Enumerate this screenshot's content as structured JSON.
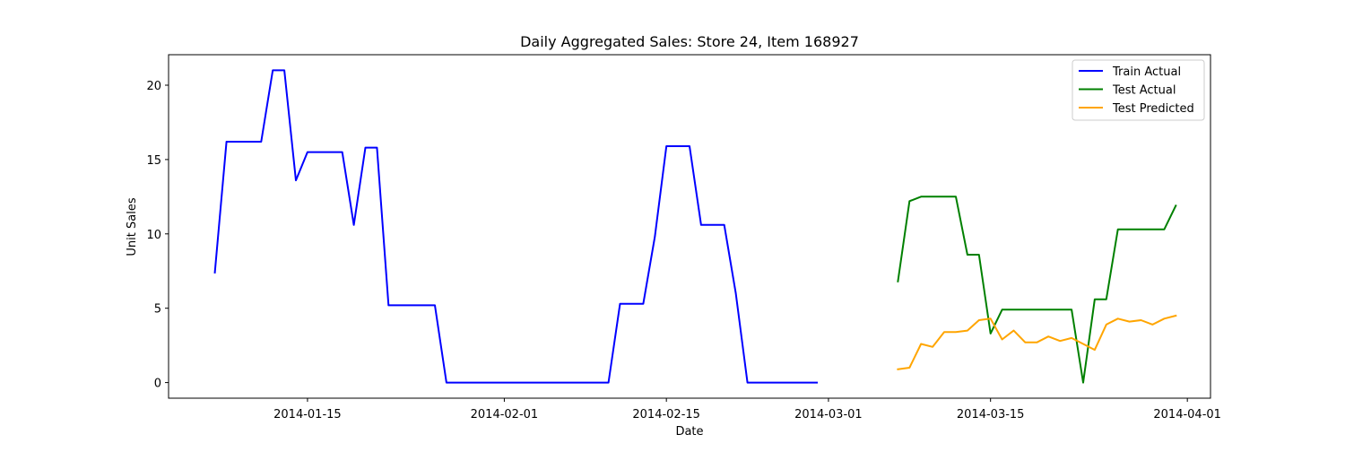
{
  "chart_data": {
    "type": "line",
    "title": "Daily Aggregated Sales: Store 24, Item 168927",
    "xlabel": "Date",
    "ylabel": "Unit Sales",
    "xlim": [
      "2014-01-03",
      "2014-04-03"
    ],
    "ylim": [
      -1.05,
      22.05
    ],
    "x_ticks": [
      "2014-01-15",
      "2014-02-01",
      "2014-02-15",
      "2014-03-01",
      "2014-03-15",
      "2014-04-01"
    ],
    "y_ticks": [
      0,
      5,
      10,
      15,
      20
    ],
    "grid": false,
    "legend_position": "top-right",
    "series": [
      {
        "name": "Train Actual",
        "color": "#0000ff",
        "x": [
          "2014-01-07",
          "2014-01-08",
          "2014-01-09",
          "2014-01-10",
          "2014-01-11",
          "2014-01-12",
          "2014-01-13",
          "2014-01-14",
          "2014-01-15",
          "2014-01-16",
          "2014-01-17",
          "2014-01-18",
          "2014-01-19",
          "2014-01-20",
          "2014-01-21",
          "2014-01-22",
          "2014-01-23",
          "2014-01-24",
          "2014-01-25",
          "2014-01-26",
          "2014-01-27",
          "2014-01-28",
          "2014-01-29",
          "2014-01-30",
          "2014-01-31",
          "2014-02-01",
          "2014-02-02",
          "2014-02-03",
          "2014-02-04",
          "2014-02-05",
          "2014-02-06",
          "2014-02-07",
          "2014-02-08",
          "2014-02-09",
          "2014-02-10",
          "2014-02-11",
          "2014-02-12",
          "2014-02-13",
          "2014-02-14",
          "2014-02-15",
          "2014-02-16",
          "2014-02-17",
          "2014-02-18",
          "2014-02-19",
          "2014-02-20",
          "2014-02-21",
          "2014-02-22",
          "2014-02-23",
          "2014-02-24",
          "2014-02-25",
          "2014-02-26",
          "2014-02-27",
          "2014-02-28"
        ],
        "values": [
          7.4,
          16.2,
          16.2,
          16.2,
          16.2,
          21.0,
          21.0,
          13.6,
          15.5,
          15.5,
          15.5,
          15.5,
          10.6,
          15.8,
          15.8,
          5.2,
          5.2,
          5.2,
          5.2,
          5.2,
          0,
          0,
          0,
          0,
          0,
          0,
          0,
          0,
          0,
          0,
          0,
          0,
          0,
          0,
          0,
          5.3,
          5.3,
          5.3,
          9.8,
          15.9,
          15.9,
          15.9,
          10.6,
          10.6,
          10.6,
          6.0,
          0,
          0,
          0,
          0,
          0,
          0,
          0
        ]
      },
      {
        "name": "Test Actual",
        "color": "#008000",
        "x": [
          "2014-03-07",
          "2014-03-08",
          "2014-03-09",
          "2014-03-10",
          "2014-03-11",
          "2014-03-12",
          "2014-03-13",
          "2014-03-14",
          "2014-03-15",
          "2014-03-16",
          "2014-03-17",
          "2014-03-18",
          "2014-03-19",
          "2014-03-20",
          "2014-03-21",
          "2014-03-22",
          "2014-03-23",
          "2014-03-24",
          "2014-03-25",
          "2014-03-26",
          "2014-03-27",
          "2014-03-28",
          "2014-03-29",
          "2014-03-30",
          "2014-03-31"
        ],
        "values": [
          6.8,
          12.2,
          12.5,
          12.5,
          12.5,
          12.5,
          8.6,
          8.6,
          3.3,
          4.9,
          4.9,
          4.9,
          4.9,
          4.9,
          4.9,
          4.9,
          0,
          5.6,
          5.6,
          10.3,
          10.3,
          10.3,
          10.3,
          10.3,
          11.9
        ]
      },
      {
        "name": "Test Predicted",
        "color": "#ffa500",
        "x": [
          "2014-03-07",
          "2014-03-08",
          "2014-03-09",
          "2014-03-10",
          "2014-03-11",
          "2014-03-12",
          "2014-03-13",
          "2014-03-14",
          "2014-03-15",
          "2014-03-16",
          "2014-03-17",
          "2014-03-18",
          "2014-03-19",
          "2014-03-20",
          "2014-03-21",
          "2014-03-22",
          "2014-03-23",
          "2014-03-24",
          "2014-03-25",
          "2014-03-26",
          "2014-03-27",
          "2014-03-28",
          "2014-03-29",
          "2014-03-30",
          "2014-03-31"
        ],
        "values": [
          0.9,
          1.0,
          2.6,
          2.4,
          3.4,
          3.4,
          3.5,
          4.2,
          4.3,
          2.9,
          3.5,
          2.7,
          2.7,
          3.1,
          2.8,
          3.0,
          2.6,
          2.2,
          3.9,
          4.3,
          4.1,
          4.2,
          3.9,
          4.3,
          4.5
        ]
      }
    ]
  }
}
